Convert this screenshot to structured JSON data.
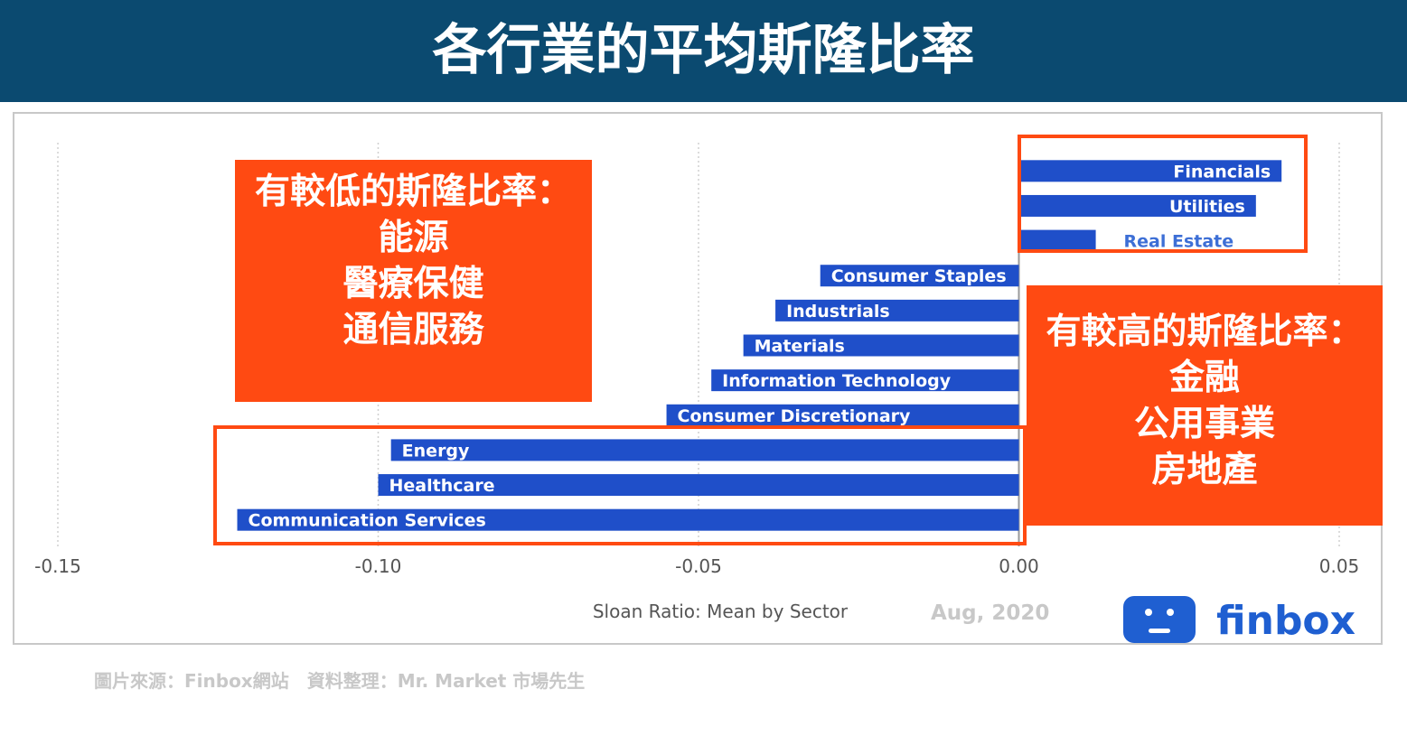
{
  "banner": {
    "title": "各行業的平均斯隆比率"
  },
  "chart_data": {
    "type": "bar",
    "orientation": "horizontal",
    "xlabel": "Sloan Ratio: Mean by Sector",
    "xlim": [
      -0.15,
      0.05
    ],
    "xticks": [
      -0.15,
      -0.1,
      -0.05,
      0.0,
      0.05
    ],
    "xtick_labels": [
      "-0.15",
      "-0.10",
      "-0.05",
      "0.00",
      "0.05"
    ],
    "grid": true,
    "categories": [
      "Financials",
      "Utilities",
      "Real Estate",
      "Consumer Staples",
      "Industrials",
      "Materials",
      "Information Technology",
      "Consumer Discretionary",
      "Energy",
      "Healthcare",
      "Communication Services"
    ],
    "values": [
      0.041,
      0.037,
      0.012,
      -0.031,
      -0.038,
      -0.043,
      -0.048,
      -0.055,
      -0.098,
      -0.1,
      -0.122
    ],
    "bar_color": "#1f4fc9"
  },
  "date": "Aug, 2020",
  "annotations": {
    "low": {
      "title": "有較低的斯隆比率：",
      "items": [
        "能源",
        "醫療保健",
        "通信服務"
      ]
    },
    "high": {
      "title": "有較高的斯隆比率：",
      "items": [
        "金融",
        "公用事業",
        "房地產"
      ]
    }
  },
  "logo": {
    "text": "finbox",
    "icon": "finbox-face-icon"
  },
  "source": "圖片來源：Finbox網站　資料整理：Mr. Market 市場先生",
  "colors": {
    "banner": "#0b4a70",
    "accent": "#ff4a12",
    "bar": "#1f4fc9",
    "logo": "#1f5fd1"
  }
}
